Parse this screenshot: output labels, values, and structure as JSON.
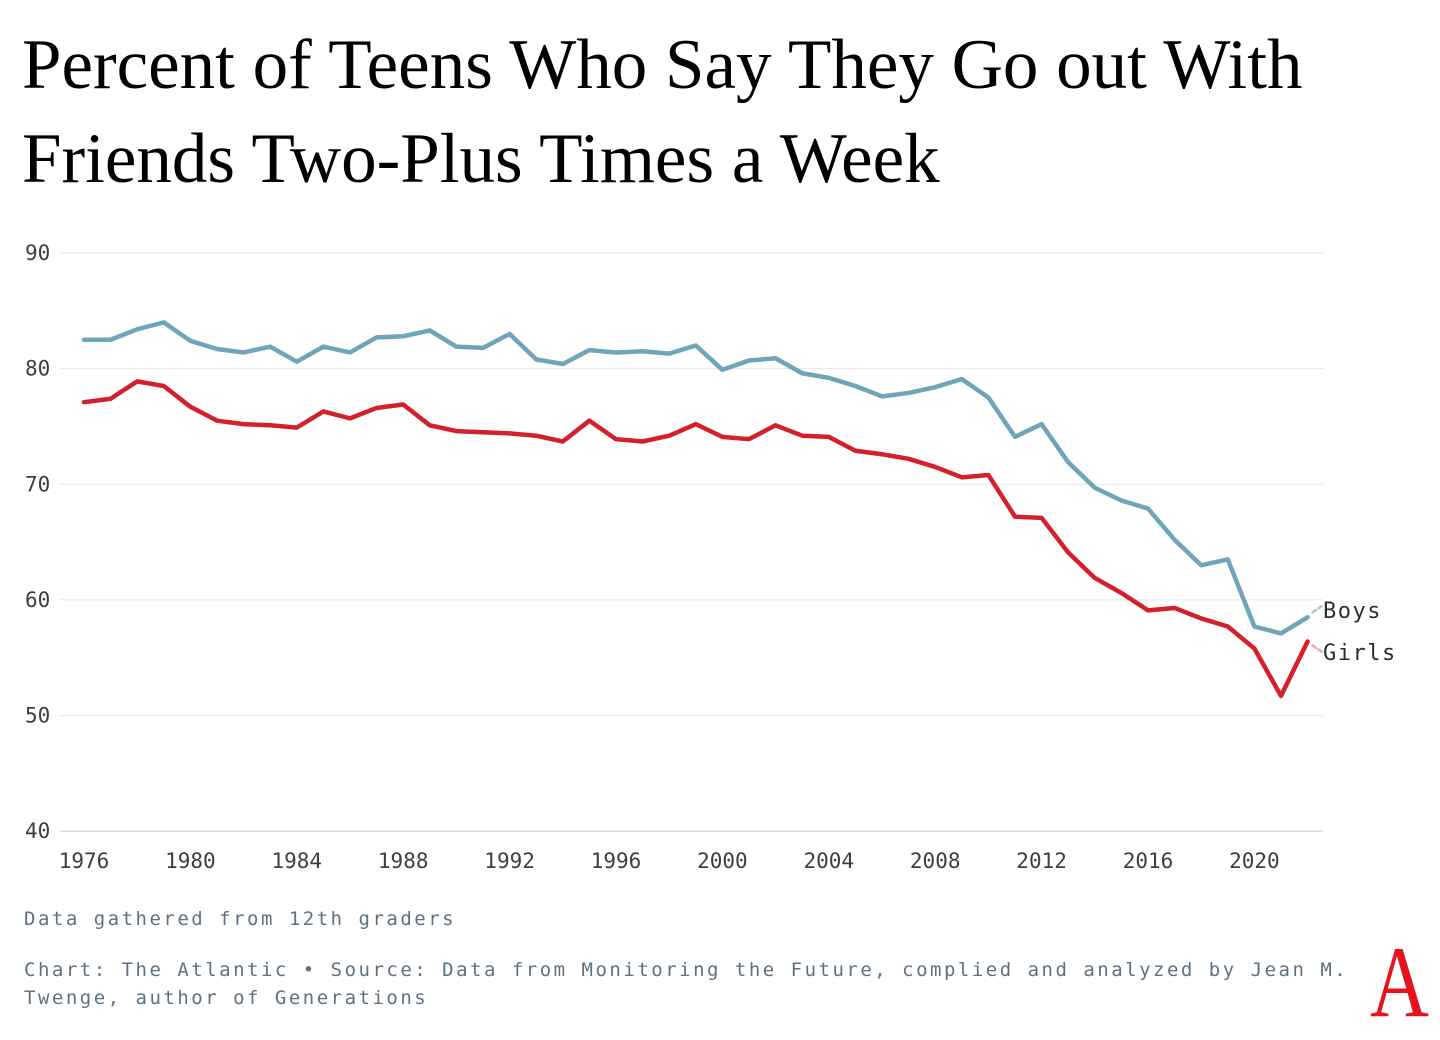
{
  "title": {
    "line1": "Percent of Teens Who Say They Go out With",
    "line2": "Friends Two-Plus Times a Week"
  },
  "chart_data": {
    "type": "line",
    "title": "Percent of Teens Who Say They Go out With Friends Two-Plus Times a Week",
    "x": [
      1976,
      1977,
      1978,
      1979,
      1980,
      1981,
      1982,
      1983,
      1984,
      1985,
      1986,
      1987,
      1988,
      1989,
      1990,
      1991,
      1992,
      1993,
      1994,
      1995,
      1996,
      1997,
      1998,
      1999,
      2000,
      2001,
      2002,
      2003,
      2004,
      2005,
      2006,
      2007,
      2008,
      2009,
      2010,
      2011,
      2012,
      2013,
      2014,
      2015,
      2016,
      2017,
      2018,
      2019,
      2020,
      2021,
      2022
    ],
    "series": [
      {
        "name": "Boys",
        "color": "#6FA5B9",
        "leader_color": "#A6C8D5",
        "values": [
          82.5,
          82.5,
          83.4,
          84.0,
          82.4,
          81.7,
          81.4,
          81.9,
          80.6,
          81.9,
          81.4,
          82.7,
          82.8,
          83.3,
          81.9,
          81.8,
          83.0,
          80.8,
          80.4,
          81.6,
          81.4,
          81.5,
          81.3,
          82.0,
          79.9,
          80.7,
          80.9,
          79.6,
          79.2,
          78.5,
          77.6,
          77.9,
          78.4,
          79.1,
          77.5,
          74.1,
          75.2,
          71.9,
          69.7,
          68.6,
          67.9,
          65.2,
          63.0,
          63.5,
          57.7,
          57.1,
          58.5
        ]
      },
      {
        "name": "Girls",
        "color": "#D3202A",
        "leader_color": "#EDA6A9",
        "values": [
          77.1,
          77.4,
          78.9,
          78.5,
          76.7,
          75.5,
          75.2,
          75.1,
          74.9,
          76.3,
          75.7,
          76.6,
          76.9,
          75.1,
          74.6,
          74.5,
          74.4,
          74.2,
          73.7,
          75.5,
          73.9,
          73.7,
          74.2,
          75.2,
          74.1,
          73.9,
          75.1,
          74.2,
          74.1,
          72.9,
          72.6,
          72.2,
          71.5,
          70.6,
          70.8,
          67.2,
          67.1,
          64.1,
          61.9,
          60.6,
          59.1,
          59.3,
          58.4,
          57.7,
          55.8,
          51.7,
          56.4
        ]
      }
    ],
    "xlabel": "",
    "ylabel": "",
    "ylim": [
      40,
      90
    ],
    "yticks": [
      90,
      80,
      70,
      60,
      50,
      40
    ],
    "xticks": [
      1976,
      1980,
      1984,
      1988,
      1992,
      1996,
      2000,
      2004,
      2008,
      2012,
      2016,
      2020
    ],
    "grid": "horizontal",
    "legend_position": "right-end-labels",
    "grid_color": "#E4E6E7",
    "baseline_color": "#C9CDCF",
    "tick_color": "#3E3E3E"
  },
  "footnote": "Data gathered from 12th graders",
  "source": "Chart: The Atlantic • Source: Data from Monitoring the Future, complied and analyzed by Jean M. Twenge, author of Generations",
  "logo": {
    "letter": "A",
    "color": "#E4131D"
  }
}
